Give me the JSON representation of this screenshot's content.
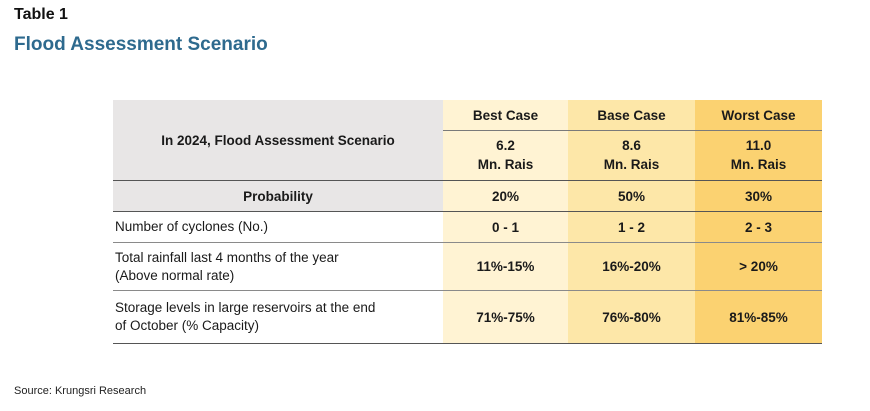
{
  "header": {
    "table_label": "Table 1",
    "title": "Flood Assessment Scenario"
  },
  "table": {
    "corner_label": "In 2024, Flood Assessment Scenario",
    "cases": [
      {
        "name": "Best Case",
        "value": "6.2",
        "unit": "Mn. Rais",
        "color": "#fff3d3"
      },
      {
        "name": "Base Case",
        "value": "8.6",
        "unit": "Mn. Rais",
        "color": "#fde7a8"
      },
      {
        "name": "Worst Case",
        "value": "11.0",
        "unit": "Mn. Rais",
        "color": "#fbd271"
      }
    ],
    "probability": {
      "label": "Probability",
      "values": [
        "20%",
        "50%",
        "30%"
      ]
    },
    "rows": [
      {
        "label": "Number of cyclones (No.)",
        "values": [
          "0 - 1",
          "1 - 2",
          "2 - 3"
        ]
      },
      {
        "label_line1": "Total rainfall last 4 months of the year",
        "label_line2": "(Above normal rate)",
        "values": [
          "11%-15%",
          "16%-20%",
          "> 20%"
        ]
      },
      {
        "label_line1": "Storage levels in large reservoirs at the end",
        "label_line2": "of October (% Capacity)",
        "values": [
          "71%-75%",
          "76%-80%",
          "81%-85%"
        ]
      }
    ]
  },
  "footer": {
    "source": "Source: Krungsri Research"
  }
}
